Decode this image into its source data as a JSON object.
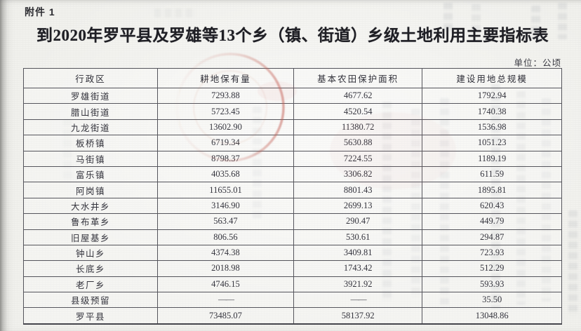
{
  "page": {
    "attachment_label": "附件 1",
    "title": "到2020年罗平县及罗雄等13个乡（镇、街道）乡级土地利用主要指标表",
    "unit_note": "单位：公顷"
  },
  "table": {
    "columns": [
      "行政区",
      "耕地保有量",
      "基本农田保护面积",
      "建设用地总规模"
    ],
    "rows": [
      [
        "罗雄街道",
        "7293.88",
        "4677.62",
        "1792.94"
      ],
      [
        "腊山街道",
        "5723.45",
        "4520.54",
        "1740.38"
      ],
      [
        "九龙街道",
        "13602.90",
        "11380.72",
        "1536.98"
      ],
      [
        "板桥镇",
        "6719.34",
        "5630.88",
        "1051.23"
      ],
      [
        "马街镇",
        "8798.37",
        "7224.55",
        "1189.19"
      ],
      [
        "富乐镇",
        "4035.68",
        "3306.82",
        "611.59"
      ],
      [
        "阿岗镇",
        "11655.01",
        "8801.43",
        "1895.81"
      ],
      [
        "大水井乡",
        "3146.90",
        "2699.13",
        "620.43"
      ],
      [
        "鲁布革乡",
        "563.47",
        "290.47",
        "449.79"
      ],
      [
        "旧屋基乡",
        "806.56",
        "530.61",
        "294.87"
      ],
      [
        "钟山乡",
        "4374.38",
        "3409.81",
        "723.93"
      ],
      [
        "长底乡",
        "2018.98",
        "1743.42",
        "512.29"
      ],
      [
        "老厂乡",
        "4746.15",
        "3921.92",
        "593.93"
      ],
      [
        "县级预留",
        "——",
        "——",
        "35.50"
      ],
      [
        "罗平县",
        "73485.07",
        "58137.92",
        "13048.86"
      ]
    ]
  },
  "colors": {
    "paper": "#f1f1ed",
    "ink": "#34343d",
    "table_border": "#55555c",
    "seal_red": "#c25b50"
  }
}
